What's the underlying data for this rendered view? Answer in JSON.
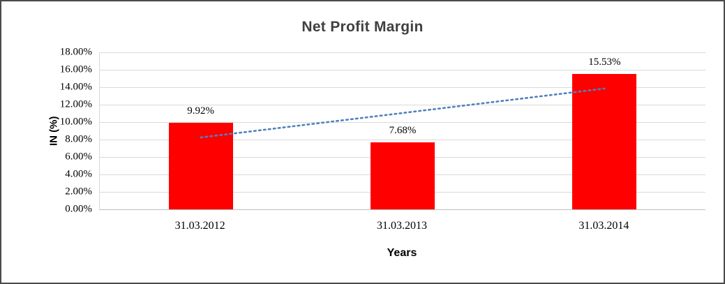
{
  "chart_data": {
    "type": "bar",
    "title": "Net Profit Margin",
    "xlabel": "Years",
    "ylabel": "IN (%)",
    "categories": [
      "31.03.2012",
      "31.03.2013",
      "31.03.2014"
    ],
    "values": [
      9.92,
      7.68,
      15.53
    ],
    "value_labels": [
      "9.92%",
      "7.68%",
      "15.53%"
    ],
    "ylim": [
      0,
      18
    ],
    "ytick_step": 2,
    "ytick_labels": [
      "0.00%",
      "2.00%",
      "4.00%",
      "6.00%",
      "8.00%",
      "10.00%",
      "12.00%",
      "14.00%",
      "16.00%",
      "18.00%"
    ],
    "grid": true,
    "legend": "none",
    "bar_color": "#FF0000",
    "trendline": {
      "type": "linear",
      "start_value": 8.24,
      "end_value": 13.85,
      "color": "#4F81BD",
      "style": "dotted"
    }
  }
}
